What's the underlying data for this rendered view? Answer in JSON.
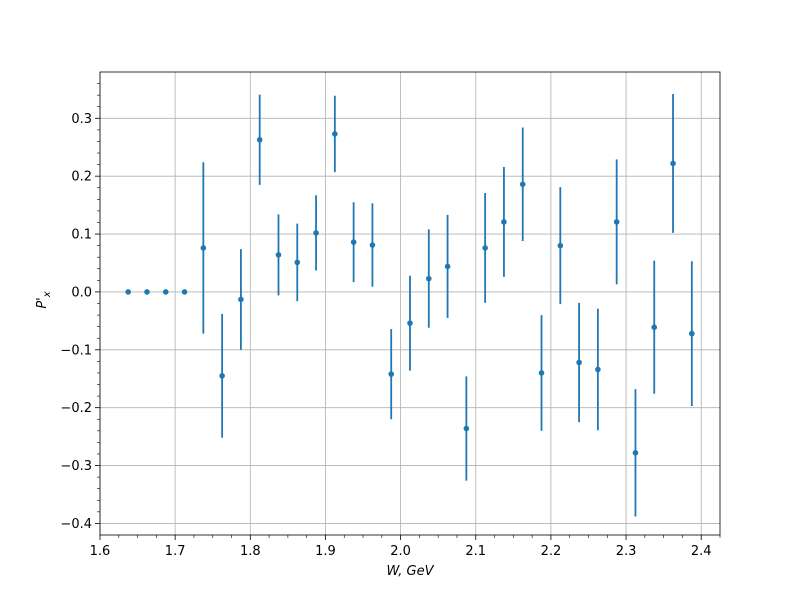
{
  "chart_data": {
    "type": "scatter",
    "xlabel_main": "W, GeV",
    "ylabel_main": "P'",
    "ylabel_sub": "x",
    "xlim": [
      1.6,
      2.425
    ],
    "ylim": [
      -0.42,
      0.38
    ],
    "xticks": [
      1.6,
      1.7,
      1.8,
      1.9,
      2.0,
      2.1,
      2.2,
      2.3,
      2.4
    ],
    "xtick_labels": [
      "1.6",
      "1.7",
      "1.8",
      "1.9",
      "2.0",
      "2.1",
      "2.2",
      "2.3",
      "2.4"
    ],
    "yticks": [
      -0.4,
      -0.3,
      -0.2,
      -0.1,
      0.0,
      0.1,
      0.2,
      0.3
    ],
    "ytick_labels": [
      "−0.4",
      "−0.3",
      "−0.2",
      "−0.1",
      "0.0",
      "0.1",
      "0.2",
      "0.3"
    ],
    "grid": true,
    "color": "#1f77b4",
    "series": [
      {
        "x": [
          1.6375,
          1.6625,
          1.6875,
          1.7125,
          1.7375,
          1.7625,
          1.7875,
          1.8125,
          1.8375,
          1.8625,
          1.8875,
          1.9125,
          1.9375,
          1.9625,
          1.9875,
          2.0125,
          2.0375,
          2.0625,
          2.0875,
          2.1125,
          2.1375,
          2.1625,
          2.1875,
          2.2125,
          2.2375,
          2.2625,
          2.2875,
          2.3125,
          2.3375,
          2.3625,
          2.3875
        ],
        "y": [
          0.0,
          0.0,
          0.0,
          0.0,
          0.076,
          -0.145,
          -0.013,
          0.263,
          0.064,
          0.051,
          0.102,
          0.273,
          0.086,
          0.081,
          -0.142,
          -0.054,
          0.023,
          0.044,
          -0.236,
          0.076,
          0.121,
          0.186,
          -0.14,
          0.08,
          -0.122,
          -0.134,
          0.121,
          -0.278,
          -0.061,
          0.222,
          -0.072
        ],
        "yerr": [
          0.0,
          0.0,
          0.0,
          0.0,
          0.148,
          0.107,
          0.087,
          0.078,
          0.07,
          0.067,
          0.065,
          0.066,
          0.069,
          0.072,
          0.078,
          0.082,
          0.085,
          0.089,
          0.09,
          0.095,
          0.095,
          0.098,
          0.1,
          0.101,
          0.103,
          0.105,
          0.108,
          0.11,
          0.115,
          0.12,
          0.125
        ]
      }
    ]
  }
}
